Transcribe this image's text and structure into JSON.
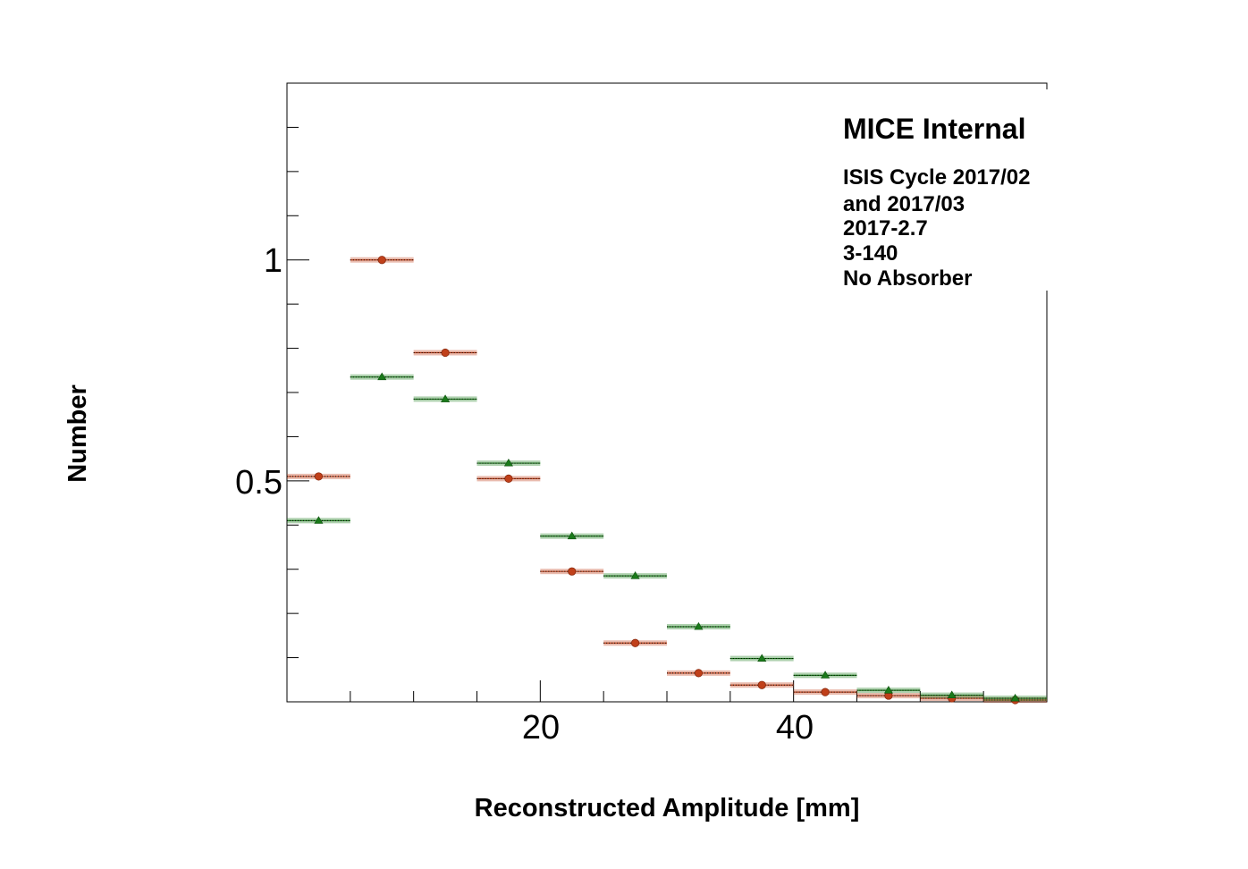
{
  "chart_data": {
    "type": "scatter",
    "title": "",
    "xlabel": "Reconstructed Amplitude [mm]",
    "ylabel": "Number",
    "xlim": [
      0,
      60
    ],
    "ylim": [
      0,
      1.4
    ],
    "x_tick_labels": [
      "20",
      "40"
    ],
    "y_tick_labels": [
      "0.5",
      "1"
    ],
    "bin_width": 5,
    "annotation": {
      "title": "MICE Internal",
      "lines": [
        "ISIS Cycle 2017/02",
        "and 2017/03",
        "2017-2.7",
        "3-140",
        "No Absorber"
      ]
    },
    "series": [
      {
        "marker": "circle",
        "color": "#c0401a",
        "x": [
          2.5,
          7.5,
          12.5,
          17.5,
          22.5,
          27.5,
          32.5,
          37.5,
          42.5,
          47.5,
          52.5,
          57.5
        ],
        "y": [
          0.51,
          1.0,
          0.79,
          0.505,
          0.295,
          0.133,
          0.065,
          0.038,
          0.022,
          0.014,
          0.008,
          0.004
        ]
      },
      {
        "marker": "triangle",
        "color": "#1a7a1a",
        "x": [
          2.5,
          7.5,
          12.5,
          17.5,
          22.5,
          27.5,
          32.5,
          37.5,
          42.5,
          47.5,
          52.5,
          57.5
        ],
        "y": [
          0.41,
          0.735,
          0.685,
          0.54,
          0.375,
          0.285,
          0.17,
          0.098,
          0.06,
          0.026,
          0.015,
          0.008
        ]
      }
    ]
  }
}
